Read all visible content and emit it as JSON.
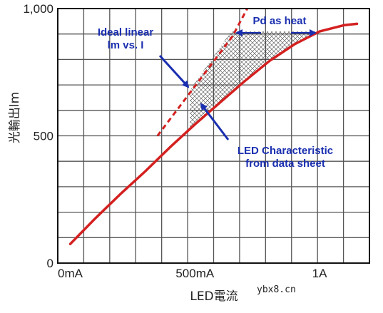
{
  "chart_data": {
    "type": "line",
    "title": "",
    "xlabel": "LED電流",
    "ylabel": "光輸出lm",
    "x_ticks": [
      {
        "value": 0,
        "label": "0mA"
      },
      {
        "value": 500,
        "label": "500mA"
      },
      {
        "value": 1000,
        "label": "1A"
      }
    ],
    "y_ticks": [
      {
        "value": 0,
        "label": "0"
      },
      {
        "value": 500,
        "label": "500"
      },
      {
        "value": 1000,
        "label": "1,000"
      }
    ],
    "xlim": [
      -50,
      1200
    ],
    "ylim": [
      0,
      1000
    ],
    "grid": true,
    "series": [
      {
        "name": "LED Characteristic from data sheet",
        "color": "#d42020",
        "style": "solid",
        "x": [
          0,
          100,
          200,
          300,
          400,
          500,
          600,
          700,
          800,
          900,
          1000,
          1100,
          1150
        ],
        "y": [
          75,
          175,
          270,
          360,
          455,
          545,
          630,
          715,
          795,
          860,
          910,
          935,
          940
        ]
      },
      {
        "name": "Ideal linear lm vs. I",
        "color": "#d42020",
        "style": "dashed",
        "x": [
          350,
          500,
          650,
          710
        ],
        "y": [
          500,
          695,
          890,
          1000
        ]
      }
    ],
    "annotations": [
      {
        "text": "Ideal linear",
        "text2": "lm vs. I"
      },
      {
        "text": "Pd as heat"
      },
      {
        "text": "LED Characteristic",
        "text2": "from data sheet"
      }
    ],
    "watermark": "ybx8.cn"
  },
  "colors": {
    "curve": "#d42020",
    "annotation": "#1a2fb0",
    "grid": "#555555",
    "frame": "#111111",
    "hatch": "#333333"
  }
}
